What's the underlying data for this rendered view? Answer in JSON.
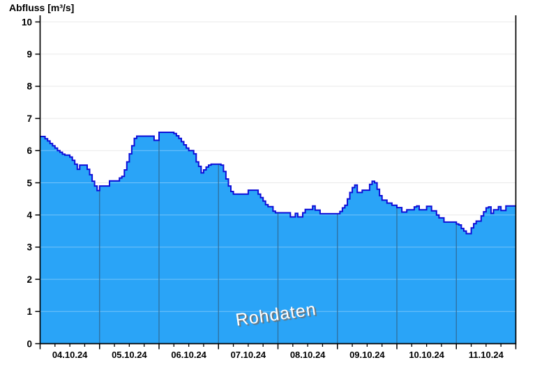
{
  "header": {
    "title": "Abfluss [m³/s]"
  },
  "watermark": "Rohdaten",
  "colors": {
    "area_fill": "#2aa4f7",
    "line": "#0d0dd8",
    "day_separator": "#2f6f9d",
    "grid": "#e9e9e9",
    "grid_over_area": "rgba(255,255,255,0.35)",
    "axis": "#000000",
    "watermark_text": "#ffffff",
    "watermark_shadow": "#6e6e6e"
  },
  "chart_data": {
    "type": "area",
    "title": "Abfluss [m³/s]",
    "ylabel": "Abfluss [m³/s]",
    "xlabel": "",
    "ylim": [
      0,
      10
    ],
    "y_ticks": [
      0,
      1,
      2,
      3,
      4,
      5,
      6,
      7,
      8,
      9,
      10
    ],
    "grid": "horizontal",
    "legend_position": "none",
    "annotations": [
      "Rohdaten"
    ],
    "x_start": "04.10.24 00:00",
    "step_hours": 1,
    "x_minor_tick_interval_hours": 6,
    "x_tick_labels": [
      "04.10.24",
      "05.10.24",
      "06.10.24",
      "07.10.24",
      "08.10.24",
      "09.10.24",
      "10.10.24",
      "11.10.24"
    ],
    "values": [
      6.44,
      6.44,
      6.37,
      6.3,
      6.22,
      6.15,
      6.08,
      6.0,
      5.95,
      5.89,
      5.86,
      5.86,
      5.8,
      5.7,
      5.58,
      5.42,
      5.55,
      5.55,
      5.55,
      5.42,
      5.25,
      5.05,
      4.9,
      4.76,
      4.9,
      4.9,
      4.9,
      4.9,
      5.06,
      5.06,
      5.06,
      5.06,
      5.15,
      5.2,
      5.4,
      5.65,
      5.9,
      6.15,
      6.38,
      6.45,
      6.45,
      6.45,
      6.45,
      6.45,
      6.45,
      6.45,
      6.32,
      6.32,
      6.57,
      6.57,
      6.57,
      6.57,
      6.57,
      6.57,
      6.53,
      6.46,
      6.38,
      6.28,
      6.18,
      6.08,
      6.0,
      6.0,
      5.9,
      5.65,
      5.51,
      5.31,
      5.4,
      5.49,
      5.55,
      5.58,
      5.58,
      5.58,
      5.58,
      5.55,
      5.35,
      5.12,
      4.9,
      4.73,
      4.65,
      4.65,
      4.65,
      4.65,
      4.65,
      4.65,
      4.77,
      4.77,
      4.77,
      4.77,
      4.65,
      4.54,
      4.43,
      4.32,
      4.26,
      4.26,
      4.12,
      4.07,
      4.07,
      4.07,
      4.07,
      4.07,
      4.07,
      3.94,
      3.94,
      4.05,
      3.94,
      3.94,
      4.07,
      4.17,
      4.17,
      4.17,
      4.28,
      4.15,
      4.15,
      4.04,
      4.04,
      4.04,
      4.04,
      4.04,
      4.04,
      4.04,
      4.04,
      4.11,
      4.22,
      4.3,
      4.5,
      4.7,
      4.85,
      4.93,
      4.7,
      4.7,
      4.77,
      4.77,
      4.77,
      4.95,
      5.05,
      5.0,
      4.8,
      4.6,
      4.46,
      4.46,
      4.37,
      4.37,
      4.3,
      4.3,
      4.23,
      4.23,
      4.09,
      4.09,
      4.16,
      4.16,
      4.16,
      4.25,
      4.28,
      4.16,
      4.16,
      4.16,
      4.27,
      4.27,
      4.13,
      4.13,
      4.0,
      3.91,
      3.91,
      3.78,
      3.78,
      3.78,
      3.78,
      3.78,
      3.72,
      3.69,
      3.58,
      3.5,
      3.42,
      3.42,
      3.6,
      3.73,
      3.81,
      3.81,
      3.97,
      4.1,
      4.22,
      4.25,
      4.05,
      4.16,
      4.16,
      4.26,
      4.14,
      4.14,
      4.28,
      4.28,
      4.28,
      4.28
    ]
  }
}
